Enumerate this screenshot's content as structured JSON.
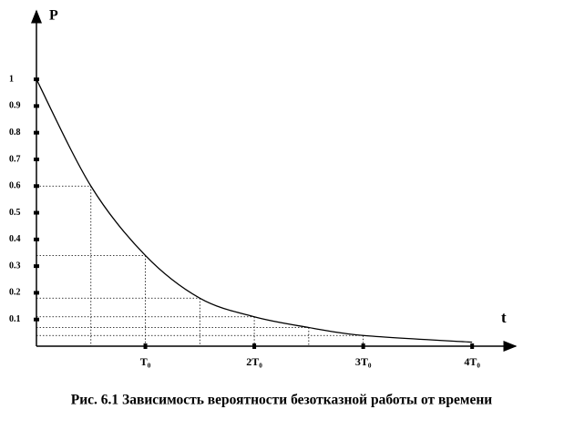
{
  "chart_data": {
    "type": "line",
    "title": "Рис. 6.1 Зависимость вероятности безотказной работы от времени",
    "y_label": "P",
    "x_label": "t",
    "x": [
      0,
      0.5,
      1,
      1.5,
      2,
      2.5,
      3,
      4
    ],
    "series": [
      {
        "color": "#000000",
        "values": [
          1,
          0.6,
          0.34,
          0.18,
          0.11,
          0.07,
          0.04,
          0.015
        ]
      }
    ],
    "xlim": [
      0,
      4.4
    ],
    "ylim": [
      0,
      1.27
    ],
    "xticks": [
      {
        "value": 1,
        "label": "T₀"
      },
      {
        "value": 2,
        "label": "2T₀"
      },
      {
        "value": 3,
        "label": "3T₀"
      },
      {
        "value": 4,
        "label": "4T₀"
      }
    ],
    "yticks": [
      0.1,
      0.2,
      0.3,
      0.4,
      0.5,
      0.6,
      0.7,
      0.8,
      0.9,
      1
    ],
    "guides": true
  }
}
